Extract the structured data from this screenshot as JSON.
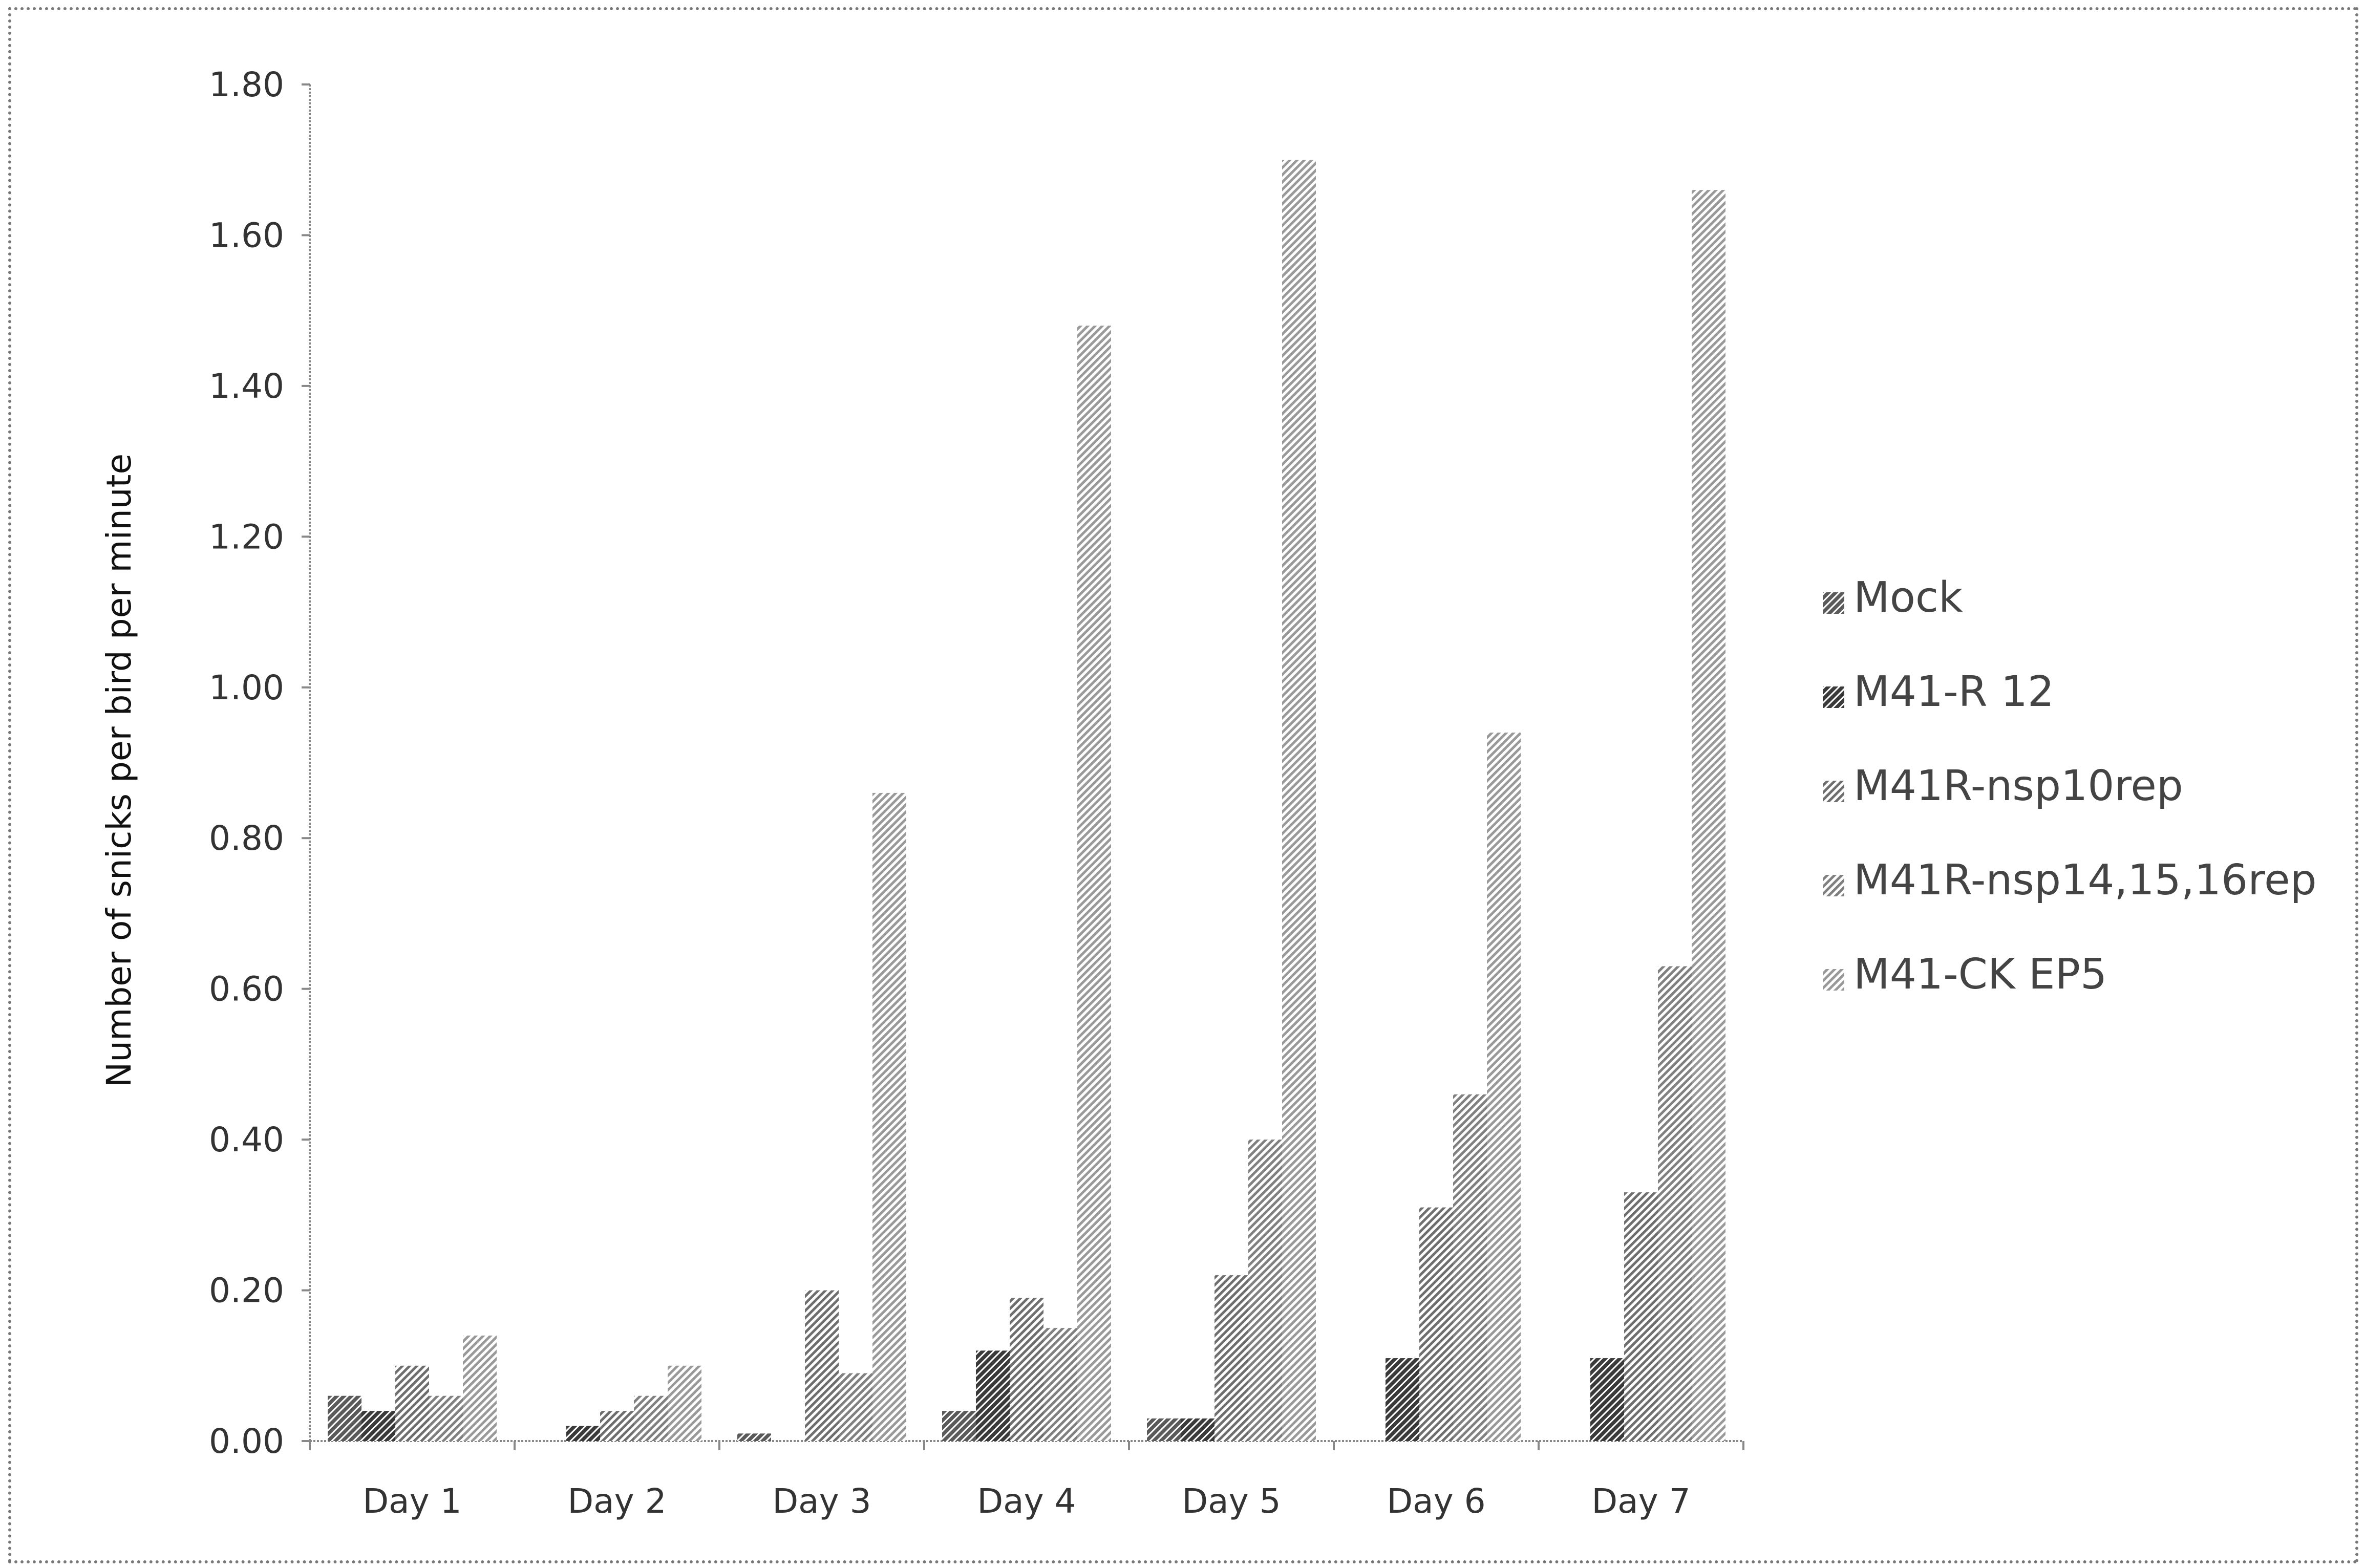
{
  "chart_data": {
    "type": "bar",
    "title": "",
    "xlabel": "",
    "ylabel": "Number of snicks per bird per minute",
    "ylim": [
      0,
      1.8
    ],
    "yticks": [
      "0.00",
      "0.20",
      "0.40",
      "0.60",
      "0.80",
      "1.00",
      "1.20",
      "1.40",
      "1.60",
      "1.80"
    ],
    "categories": [
      "Day 1",
      "Day 2",
      "Day 3",
      "Day 4",
      "Day 5",
      "Day 6",
      "Day 7"
    ],
    "series": [
      {
        "name": "Mock",
        "values": [
          0.06,
          0.0,
          0.01,
          0.04,
          0.03,
          0.0,
          0.0
        ]
      },
      {
        "name": "M41-R 12",
        "values": [
          0.04,
          0.02,
          0.0,
          0.12,
          0.03,
          0.11,
          0.11
        ]
      },
      {
        "name": "M41R-nsp10rep",
        "values": [
          0.1,
          0.04,
          0.2,
          0.19,
          0.22,
          0.31,
          0.33
        ]
      },
      {
        "name": "M41R-nsp14,15,16rep",
        "values": [
          0.06,
          0.06,
          0.09,
          0.15,
          0.4,
          0.46,
          0.63
        ]
      },
      {
        "name": "M41-CK EP5",
        "values": [
          0.14,
          0.1,
          0.86,
          1.48,
          1.7,
          0.94,
          1.66
        ]
      }
    ],
    "grid": false,
    "legend_position": "right",
    "colors": [
      "#5a5a5a",
      "#3a3a3a",
      "#6e6e6e",
      "#808080",
      "#999999"
    ]
  }
}
